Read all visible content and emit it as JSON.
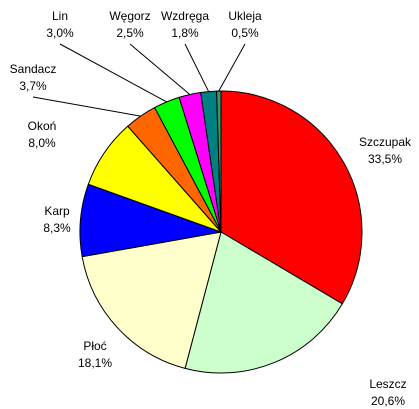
{
  "chart_data": {
    "type": "pie",
    "categories": [
      "Szczupak",
      "Leszcz",
      "Płoć",
      "Karp",
      "Okoń",
      "Sandacz",
      "Lin",
      "Węgorz",
      "Wzdręga",
      "Ukleja"
    ],
    "values": [
      33.5,
      20.6,
      18.1,
      8.3,
      8.0,
      3.7,
      3.0,
      2.5,
      1.8,
      0.5
    ],
    "value_labels": [
      "33,5%",
      "20,6%",
      "18,1%",
      "8,3%",
      "8,0%",
      "3,7%",
      "3,0%",
      "2,5%",
      "1,8%",
      "0,5%"
    ],
    "colors": [
      "#ff0000",
      "#ccffcc",
      "#ffffcc",
      "#0000ff",
      "#ffff00",
      "#ff6600",
      "#00ff00",
      "#ff00ff",
      "#008080",
      "#339966"
    ]
  }
}
